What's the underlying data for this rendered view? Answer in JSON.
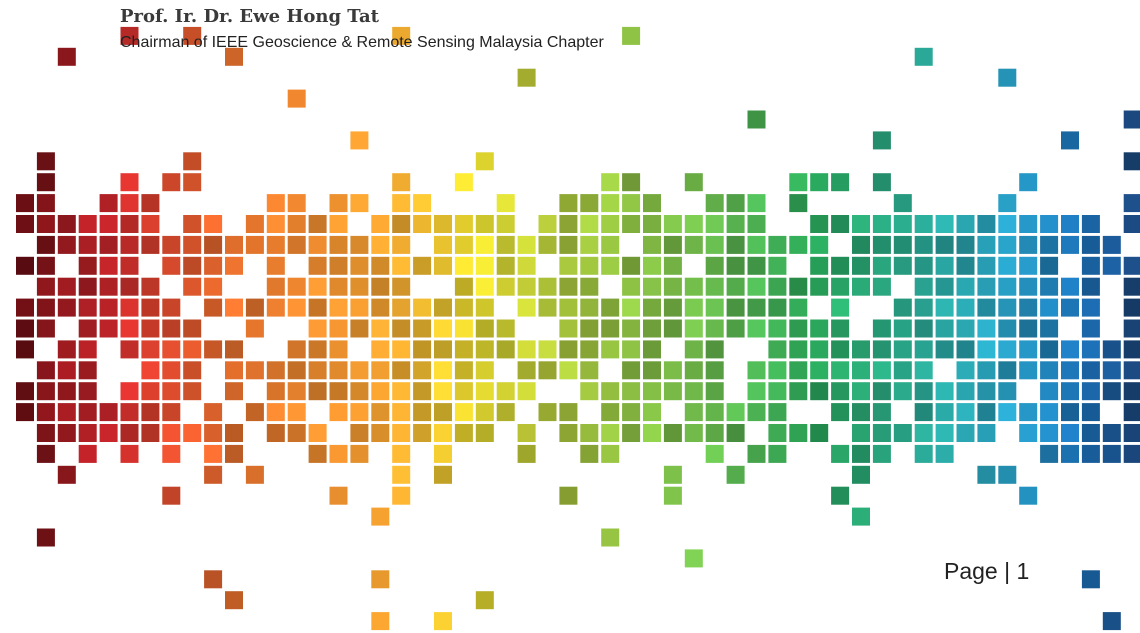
{
  "header": {
    "name": "Prof. Ir. Dr. Ewe Hong Tat",
    "position": "Chairman of IEEE Geoscience & Remote Sensing Malaysia Chapter"
  },
  "footer": {
    "page": "Page | 1"
  }
}
